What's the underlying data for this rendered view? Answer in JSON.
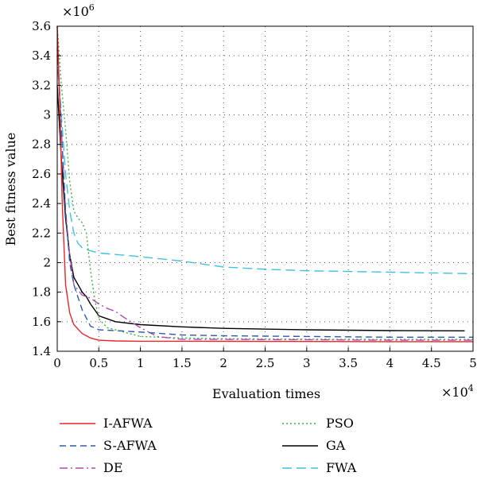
{
  "chart_data": {
    "type": "line",
    "xlabel": "Evaluation times",
    "ylabel": "Best fitness value",
    "x_multiplier": {
      "base": "×10",
      "exp": "4"
    },
    "y_multiplier": {
      "base": "×10",
      "exp": "6"
    },
    "xlim": [
      0,
      5
    ],
    "ylim": [
      1.4,
      3.6
    ],
    "x_ticks": [
      "0",
      "0.5",
      "1",
      "1.5",
      "2",
      "2.5",
      "3",
      "3.5",
      "4",
      "4.5",
      "5"
    ],
    "y_ticks": [
      "1.4",
      "1.6",
      "1.8",
      "2",
      "2.2",
      "2.4",
      "2.6",
      "2.8",
      "3",
      "3.2",
      "3.4",
      "3.6"
    ],
    "grid": true,
    "legend_position": "below",
    "series": [
      {
        "name": "I-AFWA",
        "color": "#e8252a",
        "dash": "solid",
        "x": [
          0,
          0.03,
          0.06,
          0.1,
          0.15,
          0.2,
          0.3,
          0.4,
          0.5,
          0.7,
          1.0,
          2.0,
          3.0,
          4.0,
          5.0
        ],
        "y": [
          3.6,
          3.1,
          2.4,
          1.85,
          1.66,
          1.58,
          1.52,
          1.49,
          1.475,
          1.47,
          1.468,
          1.467,
          1.466,
          1.465,
          1.465
        ]
      },
      {
        "name": "S-AFWA",
        "color": "#2f5aa8",
        "dash": "8,5",
        "x": [
          0,
          0.05,
          0.1,
          0.15,
          0.2,
          0.3,
          0.4,
          0.5,
          0.7,
          1.0,
          1.5,
          2.0,
          3.0,
          4.0,
          5.0
        ],
        "y": [
          3.45,
          2.9,
          2.35,
          2.0,
          1.85,
          1.68,
          1.57,
          1.545,
          1.54,
          1.53,
          1.51,
          1.505,
          1.5,
          1.495,
          1.495
        ]
      },
      {
        "name": "DE",
        "color": "#b24bb2",
        "dash": "10,4,2,4",
        "x": [
          0,
          0.05,
          0.1,
          0.15,
          0.2,
          0.3,
          0.4,
          0.5,
          0.6,
          0.7,
          0.8,
          1.0,
          1.2,
          1.5,
          2.0,
          3.0,
          4.0,
          5.0
        ],
        "y": [
          3.4,
          2.9,
          2.35,
          2.05,
          1.85,
          1.78,
          1.76,
          1.72,
          1.69,
          1.67,
          1.63,
          1.56,
          1.5,
          1.48,
          1.48,
          1.478,
          1.475,
          1.475
        ]
      },
      {
        "name": "PSO",
        "color": "#3ab03a",
        "dash": "2,3",
        "x": [
          0,
          0.05,
          0.1,
          0.15,
          0.2,
          0.25,
          0.3,
          0.35,
          0.4,
          0.45,
          0.5,
          0.6,
          0.8,
          1.0,
          1.5,
          2.0,
          3.0,
          4.0,
          5.0
        ],
        "y": [
          3.6,
          3.2,
          2.9,
          2.55,
          2.35,
          2.3,
          2.27,
          2.2,
          1.95,
          1.75,
          1.62,
          1.56,
          1.53,
          1.5,
          1.49,
          1.485,
          1.482,
          1.48,
          1.48
        ]
      },
      {
        "name": "GA",
        "color": "#000000",
        "dash": "solid",
        "x": [
          0,
          0.05,
          0.1,
          0.15,
          0.2,
          0.25,
          0.3,
          0.35,
          0.4,
          0.45,
          0.5,
          0.7,
          1.0,
          1.5,
          2.0,
          3.0,
          4.0,
          4.9
        ],
        "y": [
          3.2,
          2.7,
          2.3,
          2.05,
          1.9,
          1.85,
          1.8,
          1.77,
          1.72,
          1.68,
          1.64,
          1.6,
          1.58,
          1.565,
          1.555,
          1.545,
          1.54,
          1.538
        ]
      },
      {
        "name": "FWA",
        "color": "#41c1df",
        "dash": "12,6",
        "x": [
          0,
          0.05,
          0.1,
          0.15,
          0.2,
          0.25,
          0.3,
          0.4,
          0.5,
          0.7,
          1.0,
          1.5,
          2.0,
          2.5,
          3.0,
          4.0,
          5.0
        ],
        "y": [
          3.4,
          3.0,
          2.6,
          2.35,
          2.2,
          2.13,
          2.1,
          2.08,
          2.065,
          2.055,
          2.04,
          2.01,
          1.97,
          1.955,
          1.945,
          1.935,
          1.925
        ]
      }
    ]
  }
}
